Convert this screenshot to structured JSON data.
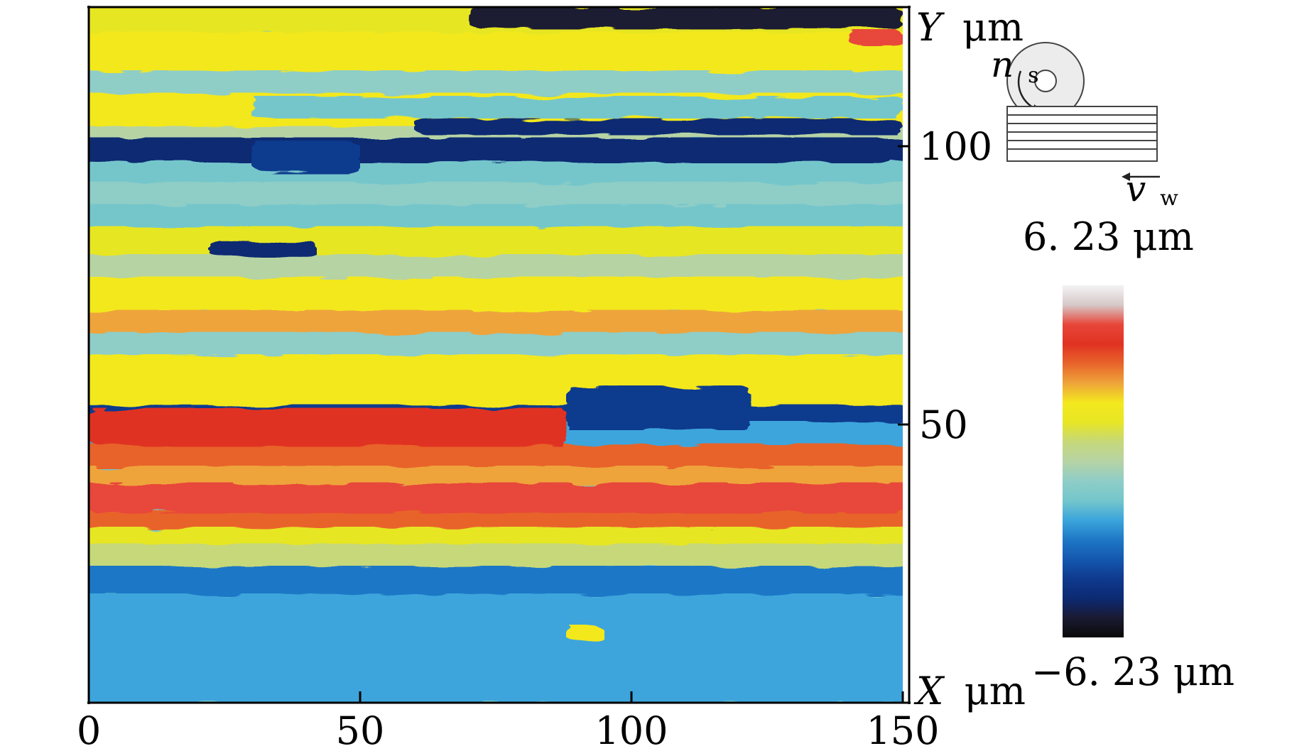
{
  "chart_data": {
    "type": "heatmap",
    "x": {
      "label_var": "X",
      "label_unit": "μm",
      "range": [
        0,
        150
      ],
      "ticks": [
        "0",
        "50",
        "100",
        "150"
      ]
    },
    "y": {
      "label_var": "Y",
      "label_unit": "μm",
      "range": [
        0,
        125
      ],
      "ticks": [
        "50",
        "100"
      ]
    },
    "colorbar": {
      "max_label": "6. 23 μm",
      "min_label": "−6. 23 μm",
      "range": [
        -6.23,
        6.23
      ],
      "stops": [
        "#f4f2f4",
        "#d6c9c9",
        "#e8463a",
        "#e03222",
        "#e8642a",
        "#eea43a",
        "#f3e81e",
        "#e7e624",
        "#c6d87a",
        "#b6d3a4",
        "#8fcdc7",
        "#74c6cb",
        "#3ca5dc",
        "#1e78c6",
        "#1458b0",
        "#0f3a8e",
        "#0c2a72",
        "#1a1a32",
        "#0a0a0a"
      ]
    },
    "bands": [
      {
        "y": [
          120,
          125
        ],
        "level": 1.6
      },
      {
        "y": [
          113,
          120
        ],
        "level": 2.4
      },
      {
        "y": [
          109,
          113
        ],
        "level": -0.8
      },
      {
        "y": [
          103,
          109
        ],
        "level": 2.0
      },
      {
        "y": [
          101,
          103
        ],
        "level": 0.2
      },
      {
        "y": [
          97,
          101
        ],
        "level": -4.6
      },
      {
        "y": [
          93,
          97
        ],
        "level": -1.4
      },
      {
        "y": [
          89,
          93
        ],
        "level": -0.6
      },
      {
        "y": [
          85,
          89
        ],
        "level": -1.2
      },
      {
        "y": [
          80,
          85
        ],
        "level": 1.4
      },
      {
        "y": [
          76,
          80
        ],
        "level": 0.0
      },
      {
        "y": [
          70,
          76
        ],
        "level": 2.2
      },
      {
        "y": [
          66,
          70
        ],
        "level": 2.8
      },
      {
        "y": [
          62,
          66
        ],
        "level": -0.4
      },
      {
        "y": [
          57,
          62
        ],
        "level": 2.0
      },
      {
        "y": [
          53,
          57
        ],
        "level": 2.4
      },
      {
        "y": [
          50,
          53
        ],
        "level": -4.2
      },
      {
        "y": [
          46,
          50
        ],
        "level": -2.2
      },
      {
        "y": [
          42,
          46
        ],
        "level": 3.2
      },
      {
        "y": [
          39,
          42
        ],
        "level": 2.6
      },
      {
        "y": [
          34,
          39
        ],
        "level": 4.6
      },
      {
        "y": [
          31,
          34
        ],
        "level": 3.8
      },
      {
        "y": [
          28,
          31
        ],
        "level": 1.6
      },
      {
        "y": [
          24,
          28
        ],
        "level": 0.8
      },
      {
        "y": [
          19,
          24
        ],
        "level": -2.6
      },
      {
        "y": [
          0,
          19
        ],
        "level": -2.2
      }
    ],
    "features": [
      {
        "x": [
          6,
          148
        ],
        "y": [
          97,
          101
        ],
        "level": -5.0
      },
      {
        "x": [
          30,
          50
        ],
        "y": [
          95,
          101
        ],
        "level": -4.4
      },
      {
        "x": [
          30,
          150
        ],
        "y": [
          105,
          109
        ],
        "level": -1.4
      },
      {
        "x": [
          60,
          150
        ],
        "y": [
          102,
          105
        ],
        "level": -4.6
      },
      {
        "x": [
          22,
          42
        ],
        "y": [
          80,
          83
        ],
        "level": -4.8
      },
      {
        "x": [
          0,
          88
        ],
        "y": [
          46,
          53
        ],
        "level": 4.4
      },
      {
        "x": [
          88,
          122
        ],
        "y": [
          49,
          57
        ],
        "level": -4.0
      },
      {
        "x": [
          0,
          150
        ],
        "y": [
          34,
          39
        ],
        "level": 5.0
      },
      {
        "x": [
          70,
          150
        ],
        "y": [
          121,
          125
        ],
        "level": -5.6
      },
      {
        "x": [
          0,
          30
        ],
        "y": [
          0,
          12
        ],
        "level": -1.8
      },
      {
        "x": [
          88,
          95
        ],
        "y": [
          11,
          14
        ],
        "level": 2.2
      },
      {
        "x": [
          140,
          150
        ],
        "y": [
          118,
          121
        ],
        "level": 4.6
      }
    ]
  },
  "schematic": {
    "spindle_var": "n",
    "spindle_sub": "s",
    "feed_var": "v",
    "feed_sub": "w"
  }
}
